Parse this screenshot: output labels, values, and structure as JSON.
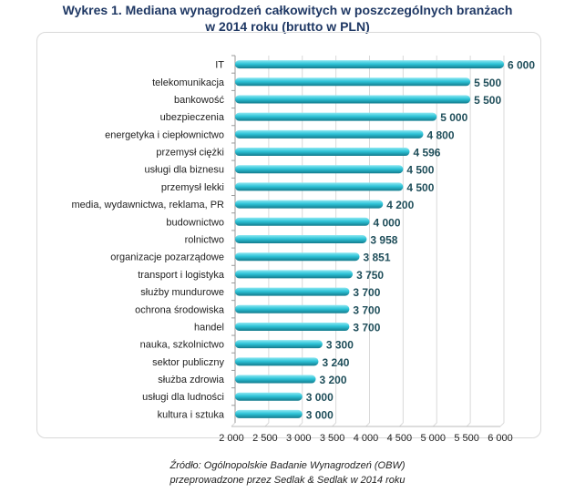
{
  "title_line1": "Wykres 1. Mediana wynagrodzeń całkowitych w poszczególnych branżach",
  "title_line2": "w 2014 roku (brutto w PLN)",
  "source_line1": "Źródło: Ogólnopolskie Badanie Wynagrodzeń (OBW)",
  "source_line2": "przeprowadzone  przez Sedlak & Sedlak w 2014 roku",
  "chart_data": {
    "type": "bar",
    "orientation": "horizontal",
    "title": "Wykres 1. Mediana wynagrodzeń całkowitych w poszczególnych branżach w 2014 roku (brutto w PLN)",
    "categories": [
      "IT",
      "telekomunikacja",
      "bankowość",
      "ubezpieczenia",
      "energetyka i ciepłownictwo",
      "przemysł ciężki",
      "usługi dla biznesu",
      "przemysł lekki",
      "media, wydawnictwa, reklama, PR",
      "budownictwo",
      "rolnictwo",
      "organizacje pozarządowe",
      "transport i logistyka",
      "służby mundurowe",
      "ochrona środowiska",
      "handel",
      "nauka, szkolnictwo",
      "sektor publiczny",
      "służba zdrowia",
      "usługi dla ludności",
      "kultura i sztuka"
    ],
    "values": [
      6000,
      5500,
      5500,
      5000,
      4800,
      4596,
      4500,
      4500,
      4200,
      4000,
      3958,
      3851,
      3750,
      3700,
      3700,
      3700,
      3300,
      3240,
      3200,
      3000,
      3000
    ],
    "data_labels": [
      "6 000",
      "5 500",
      "5 500",
      "5 000",
      "4 800",
      "4 596",
      "4 500",
      "4 500",
      "4 200",
      "4 000",
      "3 958",
      "3 851",
      "3 750",
      "3 700",
      "3 700",
      "3 700",
      "3 300",
      "3 240",
      "3 200",
      "3 000",
      "3 000"
    ],
    "xlim": [
      2000,
      6000
    ],
    "xticks": [
      "2 000",
      "2 500",
      "3 000",
      "3 500",
      "4 000",
      "4 500",
      "5 000",
      "5 500",
      "6 000"
    ],
    "grid": true,
    "bar_color": "#2ec4d8",
    "label_color": "#1f4e5a"
  }
}
